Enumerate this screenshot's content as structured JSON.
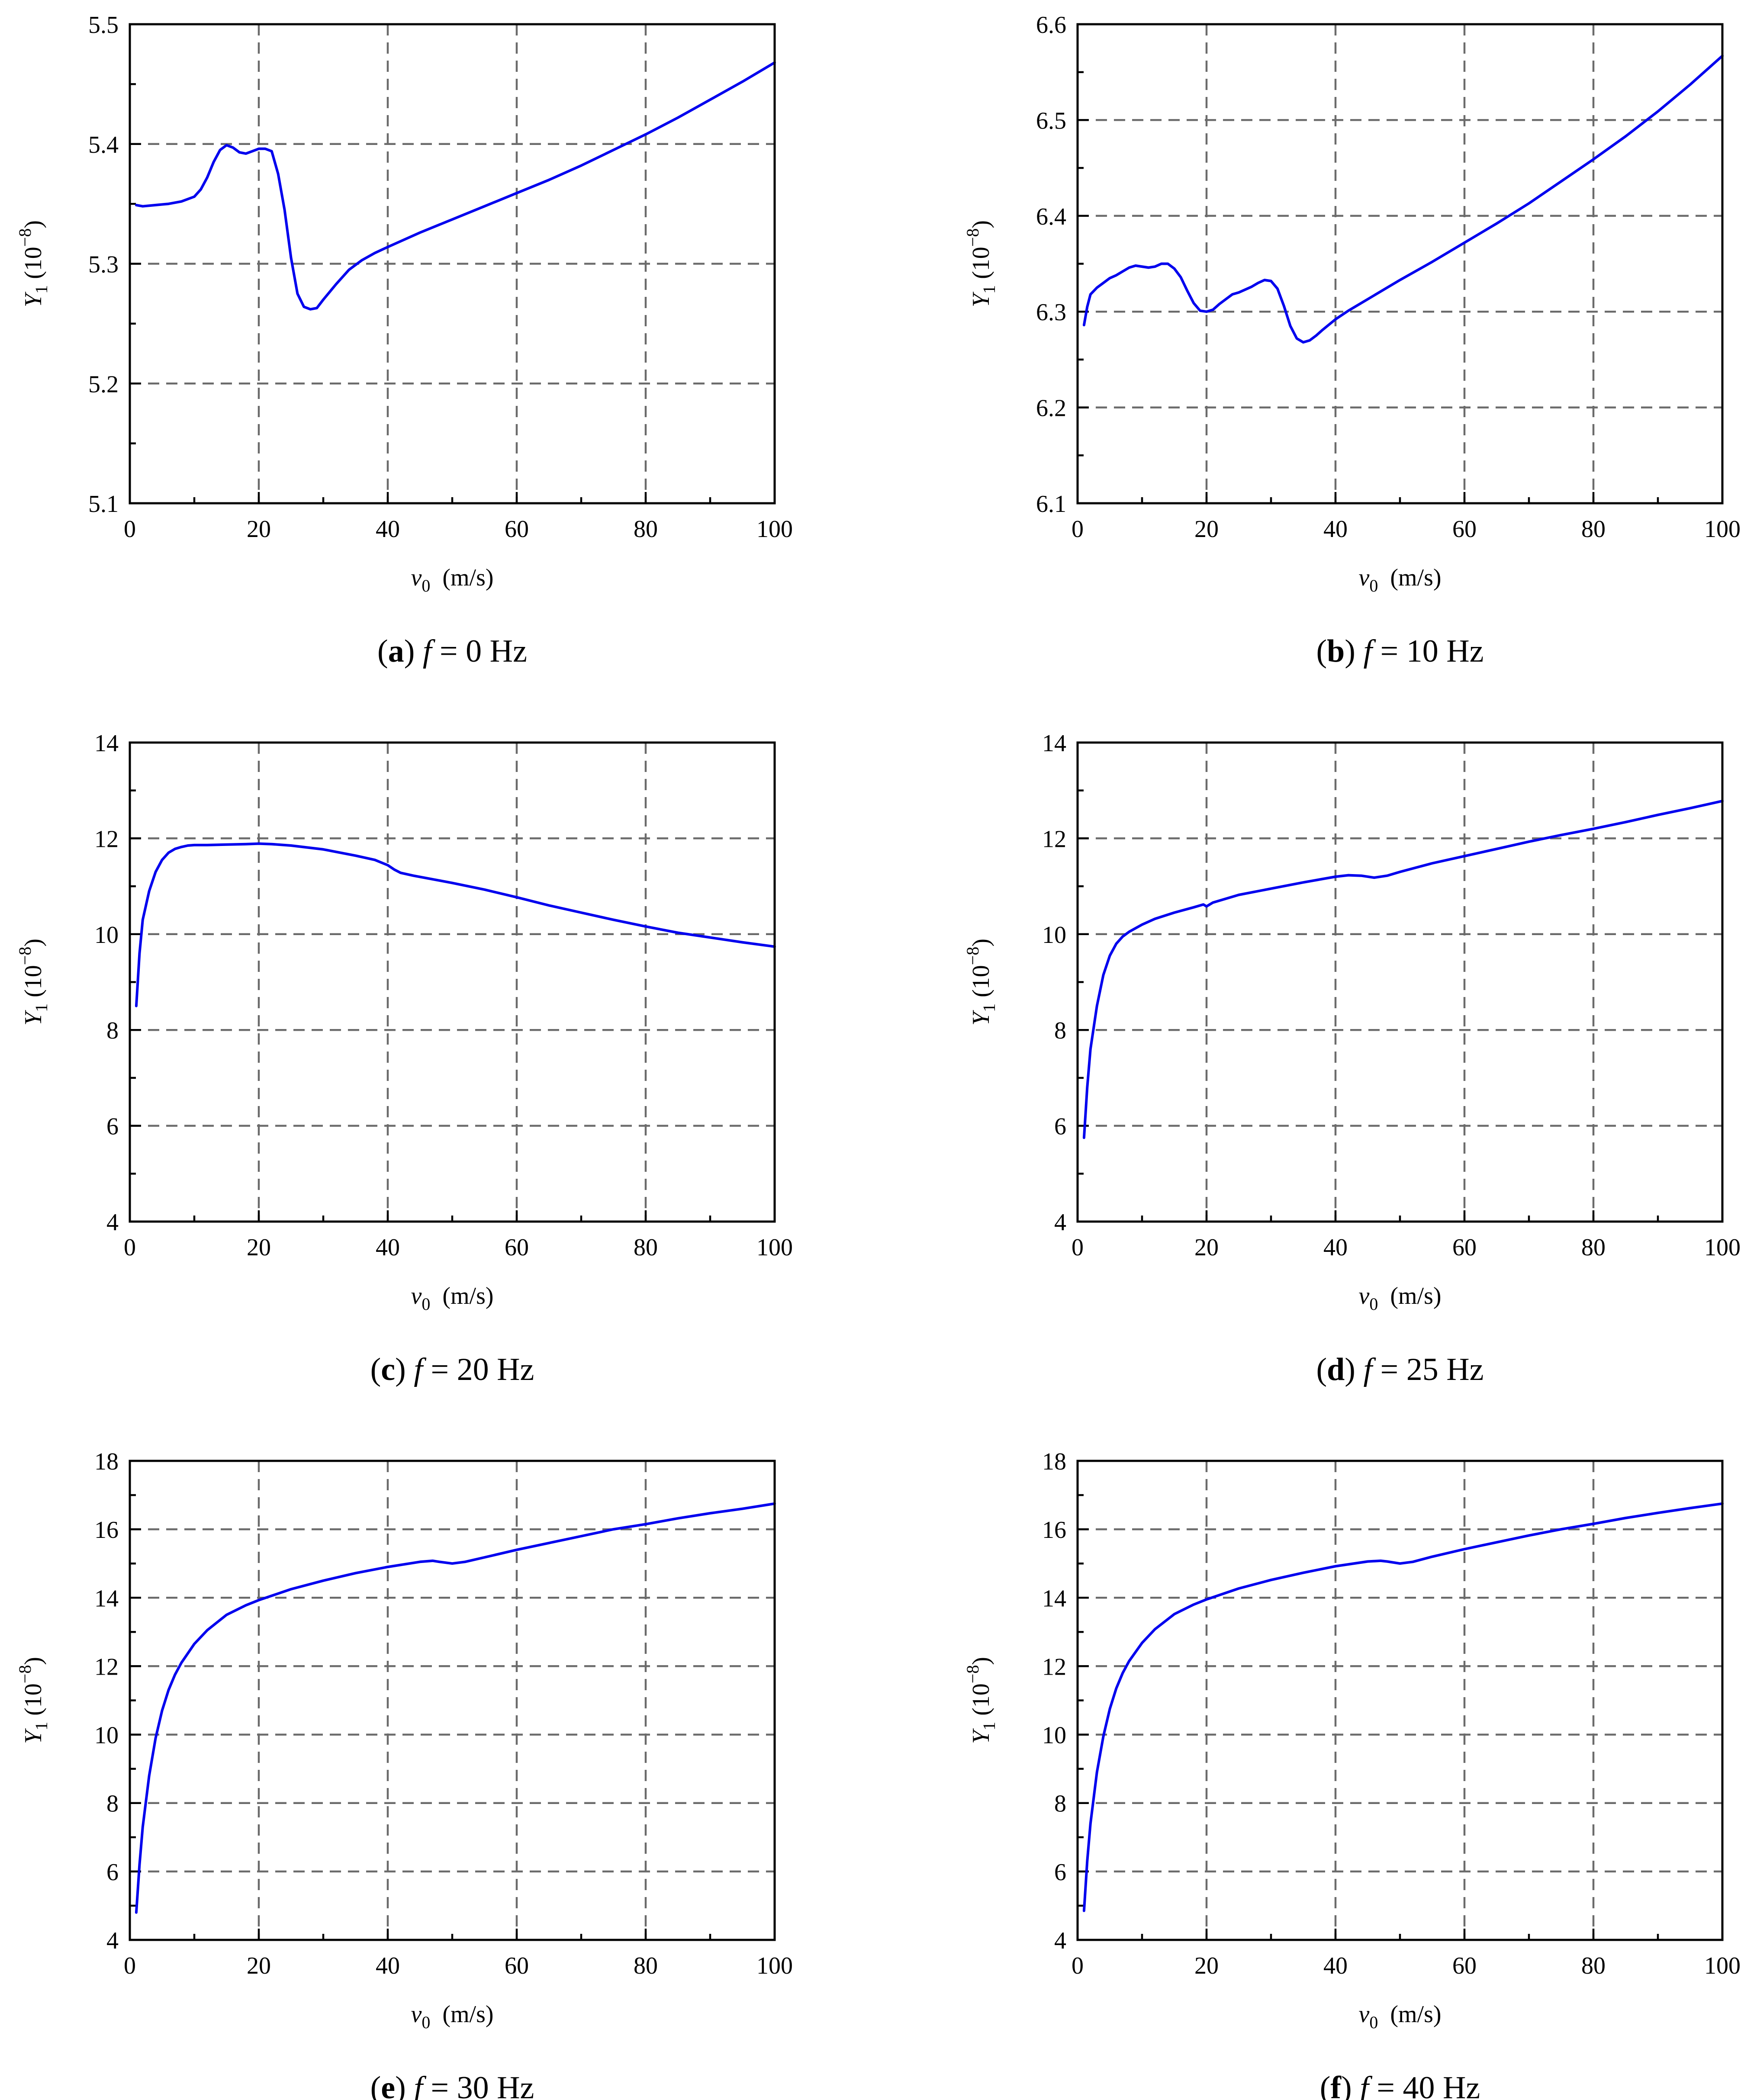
{
  "figure": {
    "series_color": "#0000ee",
    "xlabel_symbol": "v",
    "xlabel_sub": "0",
    "xlabel_unit": "(m/s)",
    "ylabel_symbol": "Y",
    "ylabel_sub": "1",
    "ylabel_unit": "(10",
    "ylabel_exp": "−8",
    "ylabel_close": ")",
    "caption_symbol": "f",
    "caption_eq": " = ",
    "caption_unit": " Hz"
  },
  "chart_data": [
    {
      "type": "line",
      "panel": "a",
      "frequency": "0",
      "xlabel": "v0 (m/s)",
      "ylabel": "Y1 (10−8)",
      "xlim": [
        0,
        100
      ],
      "ylim": [
        5.1,
        5.5
      ],
      "xticks": [
        0,
        20,
        40,
        60,
        80,
        100
      ],
      "yticks": [
        5.1,
        5.2,
        5.3,
        5.4,
        5.5
      ],
      "ytick_decimals": 1,
      "series": [
        {
          "name": "Y1",
          "x": [
            1,
            2,
            4,
            6,
            8,
            10,
            11,
            12,
            13,
            14,
            15,
            16,
            17,
            18,
            19,
            20,
            21,
            22,
            23,
            24,
            25,
            26,
            27,
            28,
            29,
            30,
            32,
            34,
            36,
            38,
            40,
            45,
            50,
            55,
            60,
            65,
            70,
            75,
            80,
            85,
            90,
            95,
            100
          ],
          "y": [
            5.349,
            5.348,
            5.349,
            5.35,
            5.352,
            5.356,
            5.362,
            5.372,
            5.385,
            5.395,
            5.399,
            5.397,
            5.393,
            5.392,
            5.394,
            5.396,
            5.396,
            5.394,
            5.375,
            5.345,
            5.305,
            5.275,
            5.264,
            5.262,
            5.263,
            5.27,
            5.283,
            5.295,
            5.303,
            5.309,
            5.314,
            5.326,
            5.337,
            5.348,
            5.359,
            5.37,
            5.382,
            5.395,
            5.408,
            5.422,
            5.437,
            5.452,
            5.468
          ]
        }
      ]
    },
    {
      "type": "line",
      "panel": "b",
      "frequency": "10",
      "xlabel": "v0 (m/s)",
      "ylabel": "Y1 (10−8)",
      "xlim": [
        0,
        100
      ],
      "ylim": [
        6.1,
        6.6
      ],
      "xticks": [
        0,
        20,
        40,
        60,
        80,
        100
      ],
      "yticks": [
        6.1,
        6.2,
        6.3,
        6.4,
        6.5,
        6.6
      ],
      "ytick_decimals": 1,
      "series": [
        {
          "name": "Y1",
          "x": [
            1,
            1.5,
            2,
            3,
            4,
            5,
            6,
            7,
            8,
            9,
            10,
            11,
            12,
            13,
            14,
            15,
            16,
            17,
            18,
            19,
            20,
            21,
            22,
            23,
            24,
            25,
            26,
            27,
            28,
            29,
            30,
            31,
            32,
            33,
            34,
            35,
            36,
            37,
            38,
            40,
            42,
            45,
            50,
            55,
            60,
            65,
            70,
            75,
            80,
            85,
            90,
            95,
            100
          ],
          "y": [
            6.286,
            6.305,
            6.318,
            6.325,
            6.33,
            6.335,
            6.338,
            6.342,
            6.346,
            6.348,
            6.347,
            6.346,
            6.347,
            6.35,
            6.35,
            6.345,
            6.336,
            6.322,
            6.309,
            6.301,
            6.3,
            6.302,
            6.308,
            6.313,
            6.318,
            6.32,
            6.323,
            6.326,
            6.33,
            6.333,
            6.332,
            6.324,
            6.306,
            6.285,
            6.272,
            6.268,
            6.27,
            6.275,
            6.281,
            6.292,
            6.301,
            6.313,
            6.333,
            6.352,
            6.372,
            6.392,
            6.413,
            6.436,
            6.459,
            6.483,
            6.509,
            6.537,
            6.567
          ]
        }
      ]
    },
    {
      "type": "line",
      "panel": "c",
      "frequency": "20",
      "xlabel": "v0 (m/s)",
      "ylabel": "Y1 (10−8)",
      "xlim": [
        0,
        100
      ],
      "ylim": [
        4,
        14
      ],
      "xticks": [
        0,
        20,
        40,
        60,
        80,
        100
      ],
      "yticks": [
        4,
        6,
        8,
        10,
        12,
        14
      ],
      "ytick_decimals": 0,
      "series": [
        {
          "name": "Y1",
          "x": [
            1,
            1.5,
            2,
            3,
            4,
            5,
            6,
            7,
            8,
            9,
            10,
            12,
            15,
            18,
            20,
            22,
            25,
            30,
            35,
            38,
            40,
            41,
            42,
            44,
            48,
            50,
            55,
            60,
            65,
            70,
            75,
            80,
            85,
            90,
            95,
            100
          ],
          "y": [
            8.5,
            9.6,
            10.3,
            10.9,
            11.3,
            11.55,
            11.7,
            11.78,
            11.82,
            11.85,
            11.86,
            11.86,
            11.87,
            11.88,
            11.89,
            11.88,
            11.85,
            11.77,
            11.64,
            11.55,
            11.44,
            11.35,
            11.28,
            11.22,
            11.12,
            11.07,
            10.93,
            10.77,
            10.6,
            10.45,
            10.3,
            10.16,
            10.03,
            9.93,
            9.83,
            9.74
          ]
        }
      ]
    },
    {
      "type": "line",
      "panel": "d",
      "frequency": "25",
      "xlabel": "v0 (m/s)",
      "ylabel": "Y1 (10−8)",
      "xlim": [
        0,
        100
      ],
      "ylim": [
        4,
        14
      ],
      "xticks": [
        0,
        20,
        40,
        60,
        80,
        100
      ],
      "yticks": [
        4,
        6,
        8,
        10,
        12,
        14
      ],
      "ytick_decimals": 0,
      "series": [
        {
          "name": "Y1",
          "x": [
            1,
            1.5,
            2,
            3,
            4,
            5,
            6,
            7,
            8,
            10,
            12,
            15,
            18,
            19.5,
            20,
            21,
            25,
            30,
            35,
            40,
            42,
            44,
            46,
            48,
            50,
            55,
            60,
            65,
            70,
            75,
            80,
            85,
            90,
            95,
            100
          ],
          "y": [
            5.75,
            6.8,
            7.6,
            8.5,
            9.15,
            9.55,
            9.8,
            9.95,
            10.05,
            10.2,
            10.32,
            10.45,
            10.56,
            10.62,
            10.58,
            10.66,
            10.82,
            10.95,
            11.08,
            11.2,
            11.23,
            11.22,
            11.18,
            11.22,
            11.3,
            11.48,
            11.63,
            11.78,
            11.93,
            12.07,
            12.2,
            12.34,
            12.49,
            12.63,
            12.78
          ]
        }
      ]
    },
    {
      "type": "line",
      "panel": "e",
      "frequency": "30",
      "xlabel": "v0 (m/s)",
      "ylabel": "Y1 (10−8)",
      "xlim": [
        0,
        100
      ],
      "ylim": [
        4,
        18
      ],
      "xticks": [
        0,
        20,
        40,
        60,
        80,
        100
      ],
      "yticks": [
        4,
        6,
        8,
        10,
        12,
        14,
        16,
        18
      ],
      "ytick_decimals": 0,
      "series": [
        {
          "name": "Y1",
          "x": [
            1,
            1.5,
            2,
            3,
            4,
            5,
            6,
            7,
            8,
            10,
            12,
            15,
            18,
            20,
            25,
            30,
            35,
            40,
            45,
            47,
            48,
            50,
            52,
            55,
            60,
            65,
            70,
            75,
            80,
            85,
            90,
            95,
            100
          ],
          "y": [
            4.8,
            6.2,
            7.3,
            8.8,
            9.9,
            10.7,
            11.3,
            11.75,
            12.1,
            12.65,
            13.05,
            13.5,
            13.78,
            13.93,
            14.25,
            14.5,
            14.72,
            14.9,
            15.05,
            15.08,
            15.05,
            15.0,
            15.05,
            15.18,
            15.4,
            15.6,
            15.8,
            16.0,
            16.15,
            16.32,
            16.47,
            16.6,
            16.75
          ]
        }
      ]
    },
    {
      "type": "line",
      "panel": "f",
      "frequency": "40",
      "xlabel": "v0 (m/s)",
      "ylabel": "Y1 (10−8)",
      "xlim": [
        0,
        100
      ],
      "ylim": [
        4,
        18
      ],
      "xticks": [
        0,
        20,
        40,
        60,
        80,
        100
      ],
      "yticks": [
        4,
        6,
        8,
        10,
        12,
        14,
        16,
        18
      ],
      "ytick_decimals": 0,
      "series": [
        {
          "name": "Y1",
          "x": [
            1,
            1.5,
            2,
            3,
            4,
            5,
            6,
            7,
            8,
            10,
            12,
            15,
            18,
            20,
            25,
            30,
            35,
            40,
            45,
            47,
            48,
            50,
            52,
            55,
            60,
            65,
            70,
            75,
            80,
            85,
            90,
            95,
            100
          ],
          "y": [
            4.85,
            6.3,
            7.4,
            8.9,
            9.95,
            10.75,
            11.35,
            11.8,
            12.15,
            12.68,
            13.08,
            13.52,
            13.8,
            13.95,
            14.27,
            14.52,
            14.73,
            14.92,
            15.06,
            15.08,
            15.06,
            15.0,
            15.05,
            15.2,
            15.42,
            15.62,
            15.82,
            16.0,
            16.16,
            16.33,
            16.48,
            16.62,
            16.75
          ]
        }
      ]
    }
  ]
}
